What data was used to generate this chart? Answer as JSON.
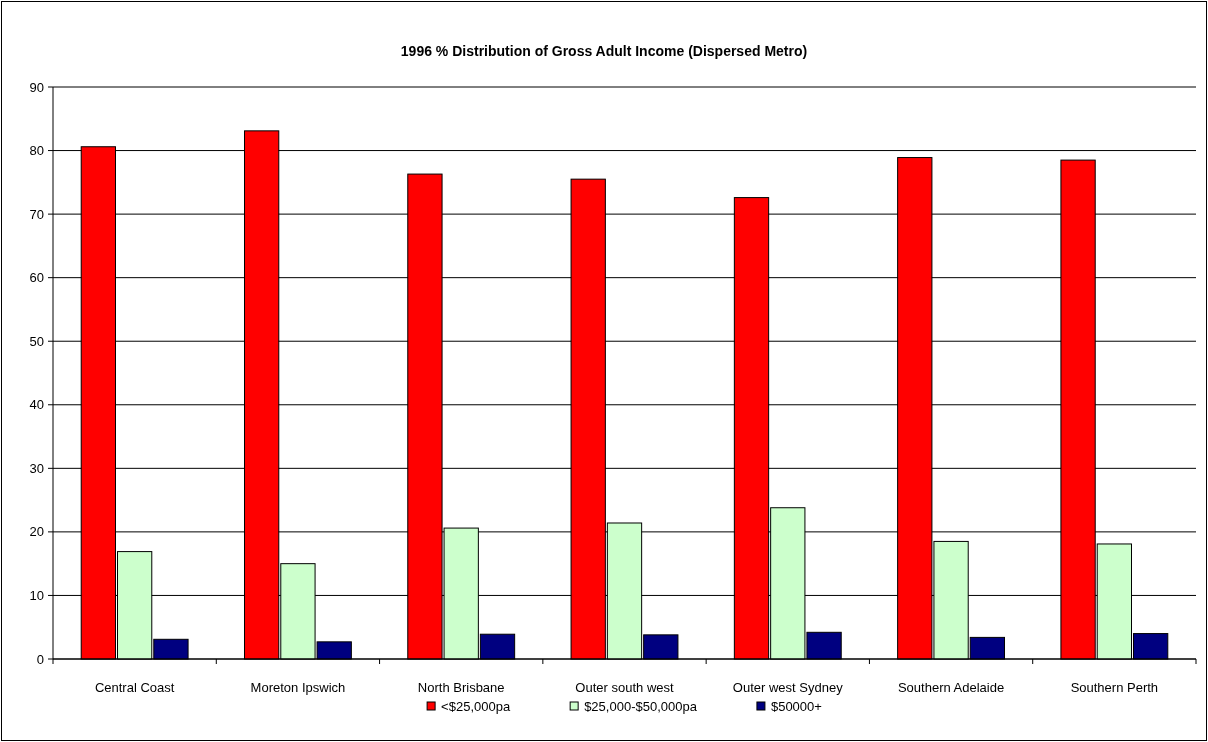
{
  "chart_data": {
    "type": "bar",
    "title": "1996 % Distribution of Gross Adult Income (Dispersed Metro)",
    "categories": [
      "Central Coast",
      "Moreton Ipswich",
      "North Brisbane",
      "Outer south west",
      "Outer west Sydney",
      "Southern Adelaide",
      "Southern Perth"
    ],
    "series": [
      {
        "name": "<$25,000pa",
        "color": "#ff0000",
        "values": [
          80.6,
          83.1,
          76.3,
          75.5,
          72.6,
          78.9,
          78.5
        ]
      },
      {
        "name": "$25,000-$50,000pa",
        "color": "#ccffcc",
        "values": [
          16.9,
          15.0,
          20.6,
          21.4,
          23.8,
          18.5,
          18.1
        ]
      },
      {
        "name": "$50000+",
        "color": "#000080",
        "values": [
          3.1,
          2.7,
          3.9,
          3.8,
          4.2,
          3.4,
          4.0
        ]
      }
    ],
    "ylim": [
      0,
      90
    ],
    "yticks": [
      0,
      10,
      20,
      30,
      40,
      50,
      60,
      70,
      80,
      90
    ],
    "grid": "y",
    "legend": "bottom"
  }
}
